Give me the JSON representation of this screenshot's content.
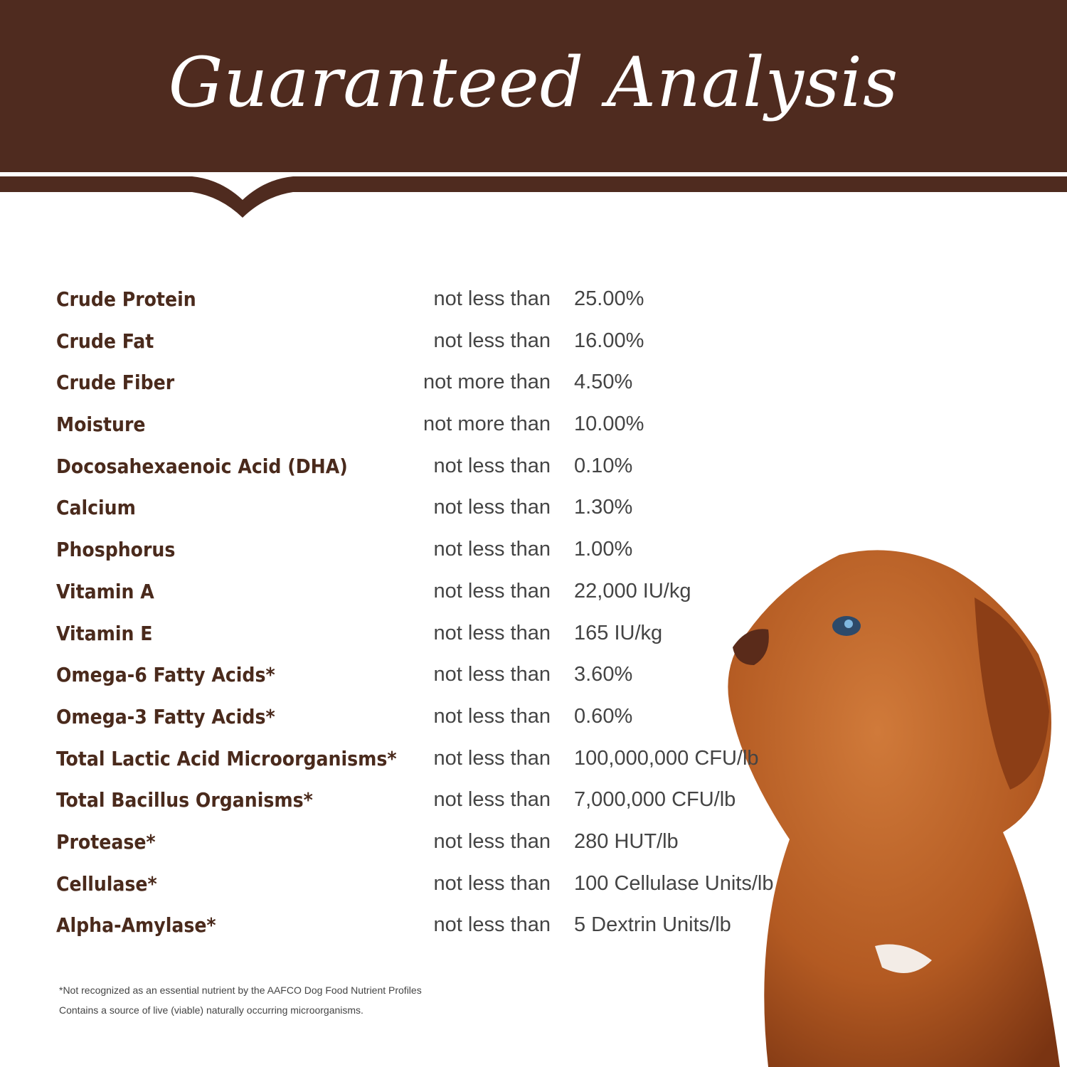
{
  "header": {
    "title": "Guaranteed Analysis",
    "color": "#4f2b1f"
  },
  "analysis": [
    {
      "nutrient": "Crude Protein",
      "qualifier": "not less than",
      "value": "25.00%"
    },
    {
      "nutrient": "Crude Fat",
      "qualifier": "not less than",
      "value": "16.00%"
    },
    {
      "nutrient": "Crude Fiber",
      "qualifier": "not more than",
      "value": "4.50%"
    },
    {
      "nutrient": "Moisture",
      "qualifier": "not more than",
      "value": "10.00%"
    },
    {
      "nutrient": "Docosahexaenoic Acid (DHA)",
      "qualifier": "not less than",
      "value": "0.10%"
    },
    {
      "nutrient": "Calcium",
      "qualifier": "not less than",
      "value": "1.30%"
    },
    {
      "nutrient": "Phosphorus",
      "qualifier": "not less than",
      "value": "1.00%"
    },
    {
      "nutrient": "Vitamin A",
      "qualifier": "not less than",
      "value": "22,000 IU/kg"
    },
    {
      "nutrient": "Vitamin E",
      "qualifier": "not less than",
      "value": "165 IU/kg"
    },
    {
      "nutrient": "Omega-6 Fatty Acids*",
      "qualifier": "not less than",
      "value": "3.60%"
    },
    {
      "nutrient": "Omega-3 Fatty Acids*",
      "qualifier": "not less than",
      "value": "0.60%"
    },
    {
      "nutrient": "Total Lactic Acid Microorganisms*",
      "qualifier": "not less than",
      "value": "100,000,000 CFU/lb"
    },
    {
      "nutrient": "Total Bacillus Organisms*",
      "qualifier": "not less than",
      "value": "7,000,000 CFU/lb"
    },
    {
      "nutrient": "Protease*",
      "qualifier": "not less than",
      "value": "280 HUT/lb"
    },
    {
      "nutrient": "Cellulase*",
      "qualifier": "not less than",
      "value": "100 Cellulase Units/lb"
    },
    {
      "nutrient": "Alpha-Amylase*",
      "qualifier": "not less than",
      "value": "5 Dextrin Units/lb"
    }
  ],
  "footnotes": [
    "*Not recognized as an essential nutrient by the AAFCO Dog Food Nutrient Profiles",
    "Contains a source of live (viable) naturally occurring microorganisms."
  ]
}
